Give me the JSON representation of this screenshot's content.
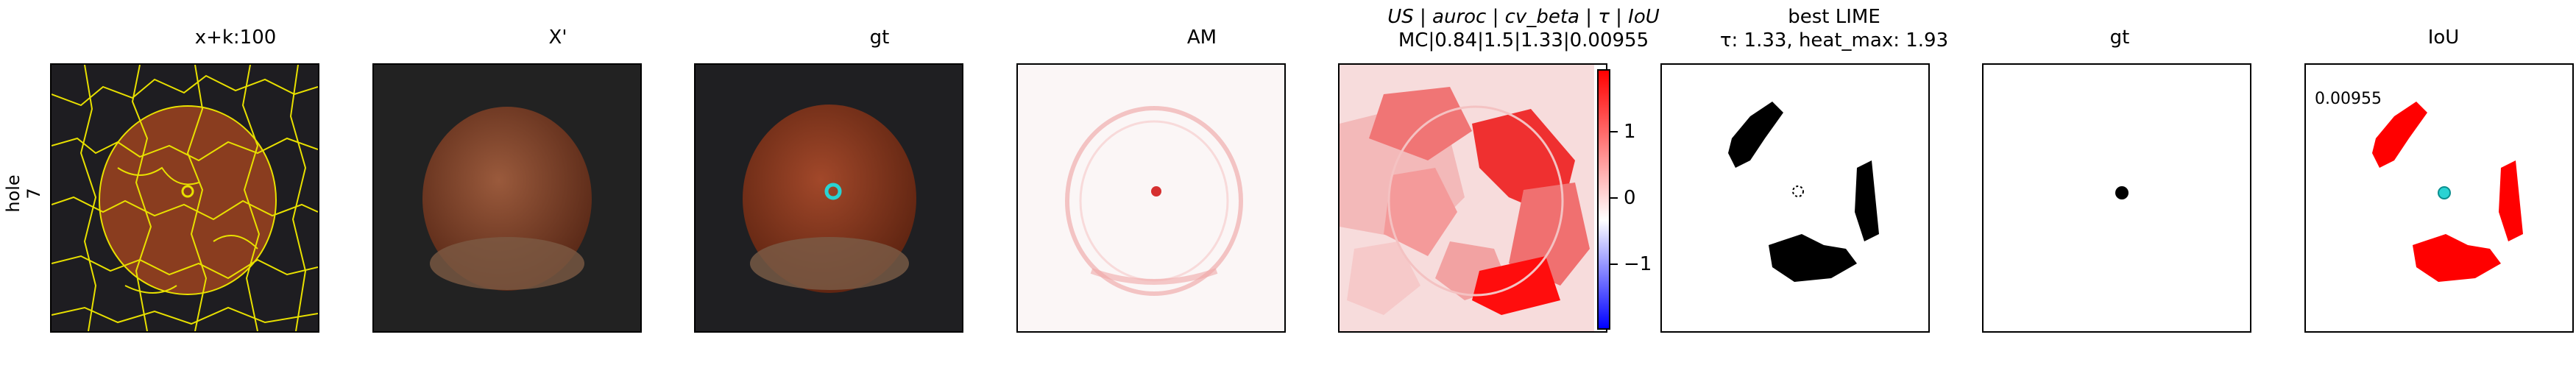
{
  "row_label": "hole\n7",
  "titles": {
    "p1": "x+k:100",
    "p2": "X'",
    "p3": "gt",
    "p4": "AM",
    "p5_line1": "US | auroc | cv_beta | τ | IoU",
    "p5_line2": "MC|0.84|1.5|1.33|0.00955",
    "p6_line1": "best LIME",
    "p6_line2": "τ: 1.33, heat_max: 1.93",
    "p7": "gt",
    "p8": "IoU"
  },
  "iou_value": "0.00955",
  "colorbar": {
    "ticks": [
      "1",
      "0",
      "−1"
    ]
  },
  "colors": {
    "segment_lines": "#e8e000",
    "gt_marker": "#29d3d3",
    "positive": "#ff0000",
    "negative": "#0000ff"
  }
}
